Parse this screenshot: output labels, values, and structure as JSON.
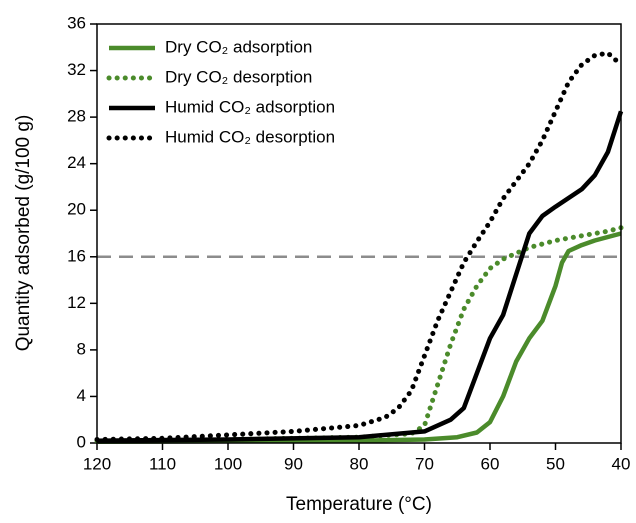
{
  "chart_data": {
    "type": "line",
    "x_label": "Temperature (°C)",
    "y_label": "Quantity adsorbed (g/100 g)",
    "xlim": [
      120,
      40
    ],
    "xticks": [
      120,
      110,
      100,
      90,
      80,
      70,
      60,
      50,
      40
    ],
    "ylim": [
      0,
      36
    ],
    "yticks": [
      0,
      4,
      8,
      12,
      16,
      20,
      24,
      28,
      32,
      36
    ],
    "reference_line": {
      "value": 16,
      "color": "#8c8c8c",
      "line_style": "dashed"
    },
    "legend_position": "upper left",
    "series": [
      {
        "name": "Dry CO₂ adsorption",
        "color": "#4b8b2b",
        "line_style": "solid",
        "x": [
          120,
          100,
          80,
          70,
          65,
          62,
          60,
          58,
          56,
          54,
          52,
          50,
          49,
          48,
          46,
          44,
          42,
          40
        ],
        "values": [
          0.1,
          0.15,
          0.2,
          0.3,
          0.5,
          0.9,
          1.8,
          4,
          7,
          9,
          10.5,
          13.5,
          15.5,
          16.5,
          17,
          17.4,
          17.7,
          18
        ]
      },
      {
        "name": "Dry CO₂ desorption",
        "color": "#4b8b2b",
        "line_style": "dotted",
        "x": [
          120,
          100,
          80,
          72,
          70,
          68,
          66,
          64,
          62,
          60,
          58,
          56,
          54,
          52,
          50,
          46,
          42,
          40
        ],
        "values": [
          0.2,
          0.3,
          0.5,
          0.8,
          1.5,
          5,
          8.5,
          11.5,
          13.5,
          15,
          15.8,
          16.3,
          16.8,
          17.1,
          17.4,
          17.8,
          18.2,
          18.5
        ]
      },
      {
        "name": "Humid CO₂ adsorption",
        "color": "#000000",
        "line_style": "solid",
        "x": [
          120,
          100,
          80,
          70,
          66,
          64,
          62,
          60,
          58,
          56,
          54,
          52,
          50,
          46,
          44,
          42,
          40
        ],
        "values": [
          0.2,
          0.3,
          0.5,
          1,
          2,
          3,
          6,
          9,
          11,
          14.5,
          18,
          19.5,
          20.3,
          21.8,
          23,
          25,
          28.5
        ]
      },
      {
        "name": "Humid CO₂ desorption",
        "color": "#000000",
        "line_style": "dotted",
        "x": [
          120,
          110,
          100,
          90,
          80,
          76,
          74,
          72,
          70,
          68,
          66,
          64,
          62,
          60,
          58,
          56,
          54,
          52,
          50,
          48,
          46,
          44,
          42,
          40
        ],
        "values": [
          0.3,
          0.4,
          0.7,
          1,
          1.5,
          2.2,
          3,
          4.5,
          7.5,
          10.5,
          13,
          15.5,
          17.3,
          19,
          21,
          22.5,
          24,
          26,
          28.5,
          31,
          32.5,
          33.3,
          33.5,
          32.5
        ]
      }
    ]
  }
}
